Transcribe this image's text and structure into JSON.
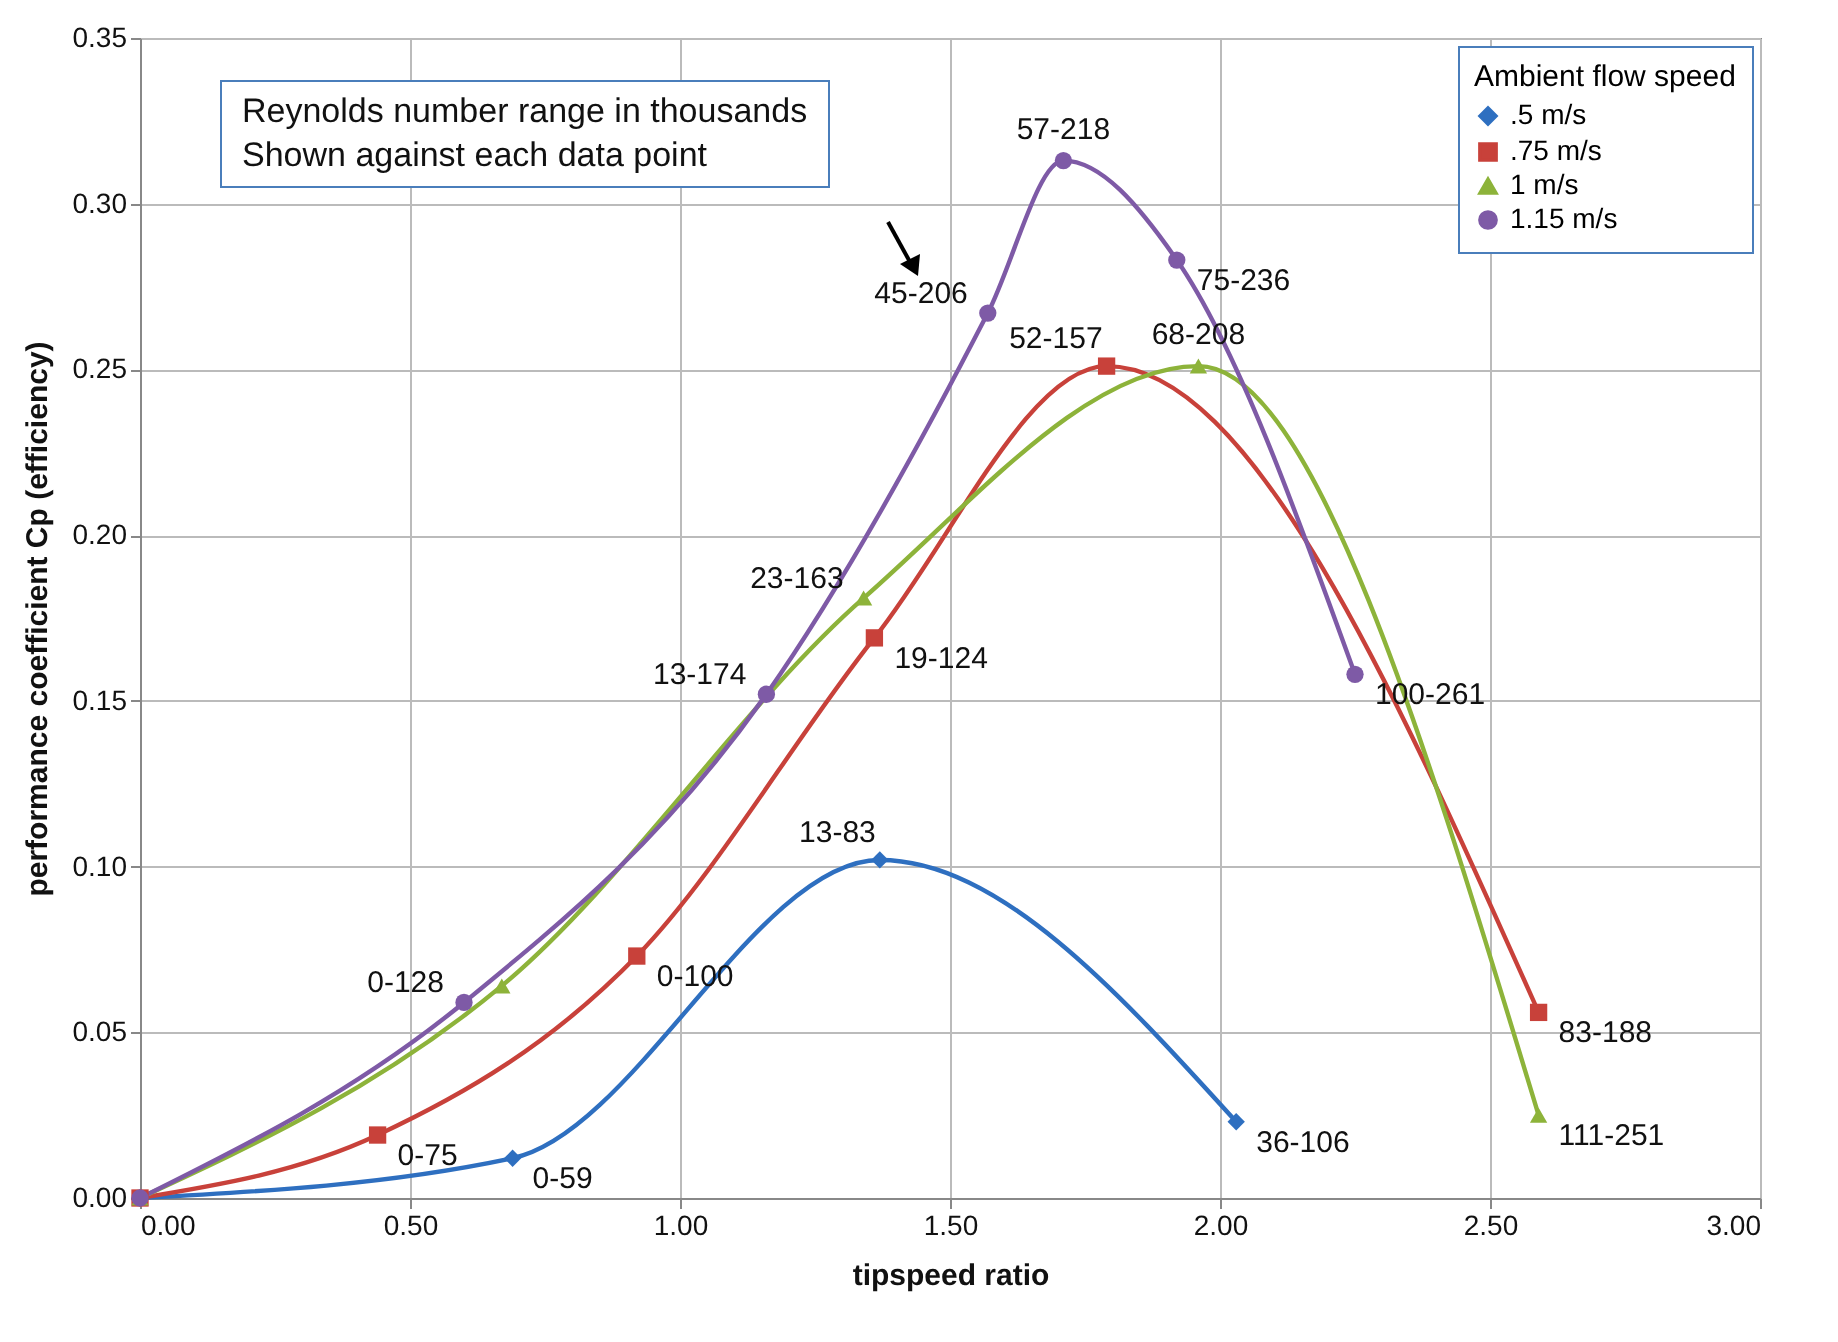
{
  "chart_data": {
    "type": "line",
    "xlabel": "tipspeed ratio",
    "ylabel": "performance coefficient Cp (efficiency)",
    "legend_title": "Ambient flow speed",
    "legend": "top right",
    "grid": true,
    "line_style": "solid",
    "xlim": [
      0,
      3
    ],
    "xticks": [
      {
        "value": 0,
        "label": "0.00"
      },
      {
        "value": 0.5,
        "label": "0.50"
      },
      {
        "value": 1,
        "label": "1.00"
      },
      {
        "value": 1.5,
        "label": "1.50"
      },
      {
        "value": 2,
        "label": "2.00"
      },
      {
        "value": 2.5,
        "label": "2.50"
      },
      {
        "value": 3,
        "label": "3.00"
      }
    ],
    "ylim": [
      0,
      0.35
    ],
    "yticks": [
      {
        "value": 0,
        "label": "0.00"
      },
      {
        "value": 0.05,
        "label": "0.05"
      },
      {
        "value": 0.1,
        "label": "0.10"
      },
      {
        "value": 0.15,
        "label": "0.15"
      },
      {
        "value": 0.2,
        "label": "0.20"
      },
      {
        "value": 0.25,
        "label": "0.25"
      },
      {
        "value": 0.3,
        "label": "0.30"
      },
      {
        "value": 0.35,
        "label": "0.35"
      }
    ],
    "series": [
      {
        "name": ".5 m/s",
        "color": "#2e6fc0",
        "marker": "diamond",
        "x": [
          0,
          0.69,
          1.37,
          2.03
        ],
        "values": [
          0,
          0.012,
          0.102,
          0.023
        ]
      },
      {
        "name": ".75 m/s",
        "color": "#c8413a",
        "marker": "square",
        "x": [
          0,
          0.44,
          0.92,
          1.36,
          1.79,
          2.59
        ],
        "values": [
          0,
          0.019,
          0.073,
          0.169,
          0.251,
          0.056
        ]
      },
      {
        "name": "1 m/s",
        "color": "#8db33a",
        "marker": "triangle",
        "x": [
          0,
          0.67,
          1.34,
          1.96,
          2.59
        ],
        "values": [
          0,
          0.064,
          0.181,
          0.251,
          0.025
        ]
      },
      {
        "name": "1.15 m/s",
        "color": "#7e5aa6",
        "marker": "circle",
        "x": [
          0,
          0.6,
          1.16,
          1.57,
          1.71,
          1.92,
          2.25
        ],
        "values": [
          0,
          0.059,
          0.152,
          0.267,
          0.313,
          0.283,
          0.158
        ]
      }
    ],
    "annotations": [
      "Reynolds number range in thousands\nShown against each data point",
      {
        "text": "0-59",
        "x": 0.69,
        "y": 0.012
      },
      {
        "text": "13-83",
        "x": 1.37,
        "y": 0.102
      },
      {
        "text": "36-106",
        "x": 2.03,
        "y": 0.023
      },
      {
        "text": "0-75",
        "x": 0.44,
        "y": 0.019
      },
      {
        "text": "0-100",
        "x": 0.92,
        "y": 0.073
      },
      {
        "text": "19-124",
        "x": 1.36,
        "y": 0.169
      },
      {
        "text": "52-157",
        "x": 1.79,
        "y": 0.251
      },
      {
        "text": "83-188",
        "x": 2.59,
        "y": 0.056
      },
      {
        "text": "23-163",
        "x": 1.34,
        "y": 0.181
      },
      {
        "text": "68-208",
        "x": 1.96,
        "y": 0.251
      },
      {
        "text": "111-251",
        "x": 2.59,
        "y": 0.025
      },
      {
        "text": "0-128",
        "x": 0.6,
        "y": 0.059
      },
      {
        "text": "13-174",
        "x": 1.16,
        "y": 0.152
      },
      {
        "text": "45-206",
        "x": 1.57,
        "y": 0.267
      },
      {
        "text": "57-218",
        "x": 1.71,
        "y": 0.313
      },
      {
        "text": "75-236",
        "x": 1.92,
        "y": 0.283
      },
      {
        "text": "100-261",
        "x": 2.25,
        "y": 0.158
      }
    ]
  }
}
